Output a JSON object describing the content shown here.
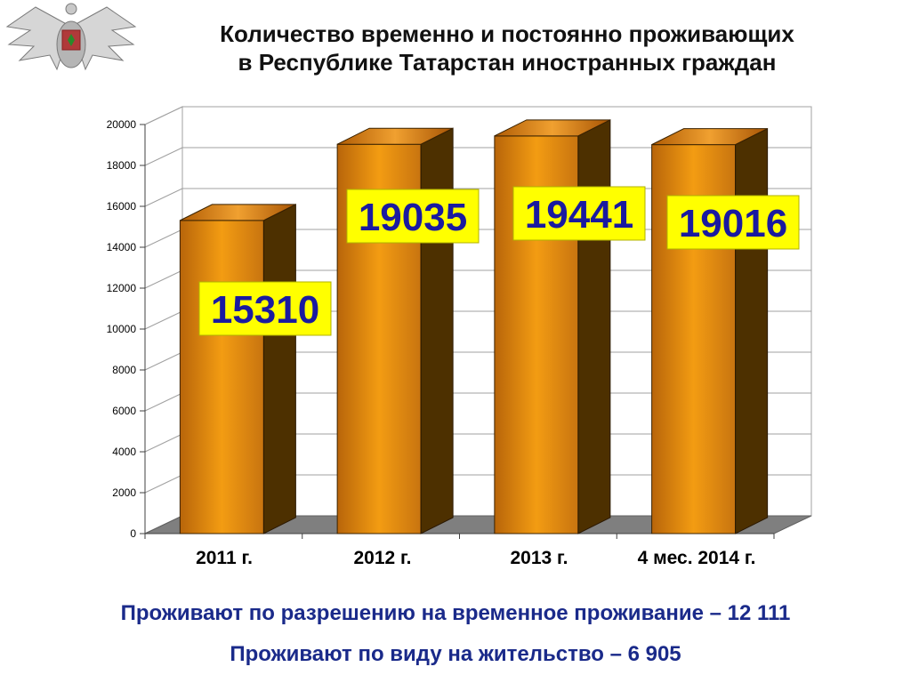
{
  "title": {
    "line1": "Количество временно и постоянно проживающих",
    "line2": "в Республике Татарстан иностранных граждан"
  },
  "emblem": {
    "icon": "double-headed-eagle-emblem-icon"
  },
  "chart_data": {
    "type": "bar",
    "categories": [
      "2011 г.",
      "2012 г.",
      "2013 г.",
      "4 мес. 2014 г."
    ],
    "values": [
      15310,
      19035,
      19441,
      19016
    ],
    "data_labels": [
      "15310",
      "19035",
      "19441",
      "19016"
    ],
    "ylim": [
      0,
      20000
    ],
    "yticks": [
      0,
      2000,
      4000,
      6000,
      8000,
      10000,
      12000,
      14000,
      16000,
      18000,
      20000
    ],
    "grid": true,
    "three_d": true,
    "colors": {
      "bar": "#f39c12",
      "bar_side": "#4d3000",
      "bar_top": "#c8700a",
      "label_bg": "#ffff00",
      "label_text": "#1a1aa0",
      "floor": "#7f7f7f"
    }
  },
  "footer": {
    "line1": "Проживают по разрешению на временное проживание – 12 111",
    "line2": "Проживают по виду на жительство – 6 905"
  }
}
